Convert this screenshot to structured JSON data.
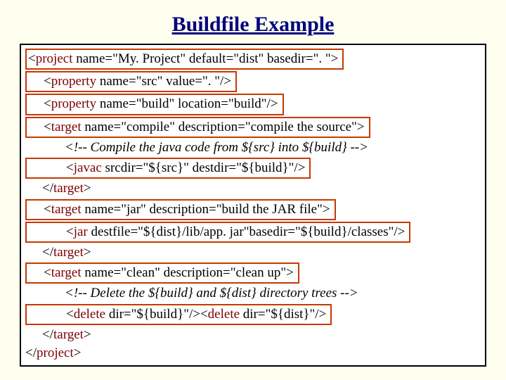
{
  "title": "Buildfile Example",
  "colors": {
    "background": "#fffff0",
    "title": "#000080",
    "tag": "#7c0000",
    "text": "#000000",
    "box_border": "#000000",
    "highlight_border": "#c43a00",
    "code_bg": "#ffffff"
  },
  "fonts": {
    "title_size": 30,
    "code_size": 19,
    "family": "Times New Roman"
  },
  "lines": [
    {
      "indent": 0,
      "highlight": true,
      "parts": [
        {
          "t": "<"
        },
        {
          "t": "project",
          "c": "tag"
        },
        {
          "t": " name=\"My. Project\" default=\"dist\" basedir=\". \">"
        }
      ]
    },
    {
      "indent": 1,
      "highlight": true,
      "parts": [
        {
          "t": "<"
        },
        {
          "t": "property",
          "c": "tag"
        },
        {
          "t": " name=\"src\" value=\". \"/>"
        }
      ]
    },
    {
      "indent": 1,
      "highlight": true,
      "parts": [
        {
          "t": "<"
        },
        {
          "t": "property",
          "c": "tag"
        },
        {
          "t": " name=\"build\" location=\"build\"/>"
        }
      ]
    },
    {
      "indent": 1,
      "highlight": true,
      "parts": [
        {
          "t": "<"
        },
        {
          "t": "target",
          "c": "tag"
        },
        {
          "t": " name=\"compile\" description=\"compile the source\">"
        }
      ]
    },
    {
      "indent": 2,
      "highlight": false,
      "italic": true,
      "parts": [
        {
          "t": "<!-- Compile the java code from ${src} into ${build} -->"
        }
      ]
    },
    {
      "indent": 2,
      "highlight": true,
      "parts": [
        {
          "t": "<"
        },
        {
          "t": "javac",
          "c": "tag"
        },
        {
          "t": " srcdir=\"${src}\" destdir=\"${build}\"/>"
        }
      ]
    },
    {
      "indent": 1,
      "highlight": false,
      "parts": [
        {
          "t": "</"
        },
        {
          "t": "target",
          "c": "tag"
        },
        {
          "t": ">"
        }
      ]
    },
    {
      "indent": 1,
      "highlight": true,
      "parts": [
        {
          "t": "<"
        },
        {
          "t": "target",
          "c": "tag"
        },
        {
          "t": " name=\"jar\" description=\"build the JAR file\">"
        }
      ]
    },
    {
      "indent": 2,
      "highlight": true,
      "parts": [
        {
          "t": "<"
        },
        {
          "t": "jar",
          "c": "tag"
        },
        {
          "t": " destfile=\"${dist}/lib/app. jar\"basedir=\"${build}/classes\"/>"
        }
      ]
    },
    {
      "indent": 1,
      "highlight": false,
      "parts": [
        {
          "t": "</"
        },
        {
          "t": "target",
          "c": "tag"
        },
        {
          "t": ">"
        }
      ]
    },
    {
      "indent": 1,
      "highlight": true,
      "parts": [
        {
          "t": "<"
        },
        {
          "t": "target",
          "c": "tag"
        },
        {
          "t": " name=\"clean\" description=\"clean up\">"
        }
      ]
    },
    {
      "indent": 2,
      "highlight": false,
      "italic": true,
      "parts": [
        {
          "t": "<!-- Delete the ${build} and ${dist} directory trees -->"
        }
      ]
    },
    {
      "indent": 2,
      "highlight": true,
      "parts": [
        {
          "t": "<"
        },
        {
          "t": "delete",
          "c": "tag"
        },
        {
          "t": " dir=\"${build}\"/><"
        },
        {
          "t": "delete",
          "c": "tag"
        },
        {
          "t": " dir=\"${dist}\"/>"
        }
      ]
    },
    {
      "indent": 1,
      "highlight": false,
      "parts": [
        {
          "t": "</"
        },
        {
          "t": "target",
          "c": "tag"
        },
        {
          "t": ">"
        }
      ]
    },
    {
      "indent": 0,
      "highlight": false,
      "parts": [
        {
          "t": "</"
        },
        {
          "t": "project",
          "c": "tag"
        },
        {
          "t": ">"
        }
      ]
    }
  ]
}
